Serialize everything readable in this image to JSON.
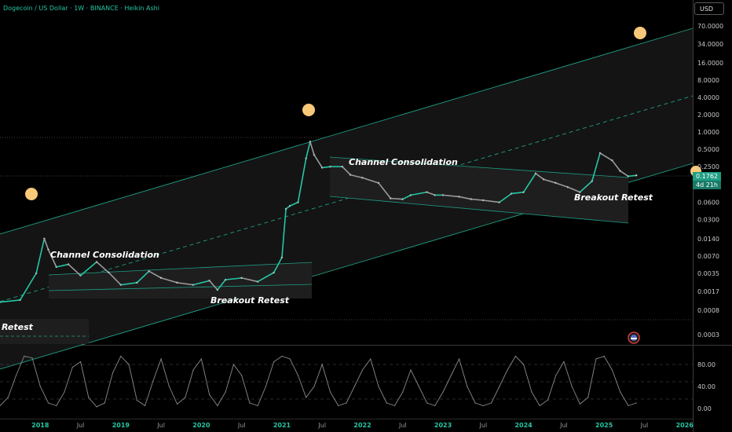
{
  "header": {
    "title": "Dogecoin / US Dollar · 1W · BINANCE · Heikin Ashi",
    "currency_button": "USD",
    "last_price": "0.1762",
    "countdown": "4d 21h"
  },
  "chart_data": [
    {
      "type": "line",
      "title": "Dogecoin / US Dollar · 1W · BINANCE · Heikin Ashi",
      "yscale": "log",
      "ylim": [
        0.0002,
        80
      ],
      "xlim": [
        2017.5,
        2026.1
      ],
      "grid": false,
      "yticks": [
        "70.0000",
        "34.0000",
        "16.0000",
        "8.0000",
        "4.0000",
        "2.0000",
        "1.0000",
        "0.5000",
        "0.2500",
        "0.1200",
        "0.0600",
        "0.0300",
        "0.0140",
        "0.0070",
        "0.0035",
        "0.0017",
        "0.0008",
        "0.0003"
      ],
      "xticks": [
        {
          "label": "2018",
          "x": 2018.0
        },
        {
          "label": "Jul",
          "x": 2018.5
        },
        {
          "label": "2019",
          "x": 2019.0
        },
        {
          "label": "Jul",
          "x": 2019.5
        },
        {
          "label": "2020",
          "x": 2020.0
        },
        {
          "label": "Jul",
          "x": 2020.5
        },
        {
          "label": "2021",
          "x": 2021.0
        },
        {
          "label": "Jul",
          "x": 2021.5
        },
        {
          "label": "2022",
          "x": 2022.0
        },
        {
          "label": "Jul",
          "x": 2022.5
        },
        {
          "label": "2023",
          "x": 2023.0
        },
        {
          "label": "Jul",
          "x": 2023.5
        },
        {
          "label": "2024",
          "x": 2024.0
        },
        {
          "label": "Jul",
          "x": 2024.5
        },
        {
          "label": "2025",
          "x": 2025.0
        },
        {
          "label": "Jul",
          "x": 2025.5
        },
        {
          "label": "2026",
          "x": 2026.0
        }
      ],
      "series": [
        {
          "x": [
            2017.5,
            2017.75,
            2017.95,
            2018.05,
            2018.1,
            2018.2,
            2018.35,
            2018.5,
            2018.7,
            2018.85,
            2019.0,
            2019.2,
            2019.35,
            2019.5,
            2019.7,
            2019.9,
            2020.1,
            2020.2,
            2020.3,
            2020.5,
            2020.7,
            2020.9,
            2021.0,
            2021.05,
            2021.1,
            2021.2,
            2021.3,
            2021.35,
            2021.4,
            2021.5,
            2021.6,
            2021.75,
            2021.85,
            2022.0,
            2022.2,
            2022.35,
            2022.5,
            2022.6,
            2022.8,
            2022.9,
            2023.0,
            2023.2,
            2023.35,
            2023.5,
            2023.7,
            2023.85,
            2024.0,
            2024.15,
            2024.25,
            2024.4,
            2024.55,
            2024.7,
            2024.85,
            2024.95,
            2025.1,
            2025.2,
            2025.3,
            2025.4
          ],
          "values": [
            0.0011,
            0.0012,
            0.0035,
            0.014,
            0.009,
            0.0045,
            0.005,
            0.0032,
            0.0055,
            0.0036,
            0.0022,
            0.0024,
            0.0038,
            0.0029,
            0.0024,
            0.0022,
            0.0026,
            0.0018,
            0.0027,
            0.0029,
            0.0025,
            0.0036,
            0.0066,
            0.046,
            0.052,
            0.06,
            0.35,
            0.68,
            0.4,
            0.24,
            0.25,
            0.25,
            0.18,
            0.16,
            0.13,
            0.07,
            0.068,
            0.08,
            0.09,
            0.08,
            0.08,
            0.075,
            0.068,
            0.065,
            0.06,
            0.085,
            0.09,
            0.19,
            0.15,
            0.13,
            0.11,
            0.09,
            0.14,
            0.43,
            0.32,
            0.21,
            0.17,
            0.1762
          ]
        }
      ],
      "annotations": [
        "Channel Consolidation",
        "Channel Consolidation",
        "Breakout Retest",
        "Breakout Retest",
        "Retest"
      ],
      "current_price": 0.1762
    },
    {
      "type": "line",
      "title": "",
      "ylim": [
        0,
        100
      ],
      "yticks": [
        "80.00",
        "40.00",
        "0.00"
      ],
      "series": [
        {
          "x": [
            2017.5,
            2017.6,
            2017.7,
            2017.8,
            2017.9,
            2018.0,
            2018.1,
            2018.2,
            2018.3,
            2018.4,
            2018.5,
            2018.6,
            2018.7,
            2018.8,
            2018.9,
            2019.0,
            2019.1,
            2019.2,
            2019.3,
            2019.4,
            2019.5,
            2019.6,
            2019.7,
            2019.8,
            2019.9,
            2020.0,
            2020.1,
            2020.2,
            2020.3,
            2020.4,
            2020.5,
            2020.6,
            2020.7,
            2020.8,
            2020.9,
            2021.0,
            2021.1,
            2021.2,
            2021.3,
            2021.4,
            2021.5,
            2021.6,
            2021.7,
            2021.8,
            2021.9,
            2022.0,
            2022.1,
            2022.2,
            2022.3,
            2022.4,
            2022.5,
            2022.6,
            2022.7,
            2022.8,
            2022.9,
            2023.0,
            2023.1,
            2023.2,
            2023.3,
            2023.4,
            2023.5,
            2023.6,
            2023.7,
            2023.8,
            2023.9,
            2024.0,
            2024.1,
            2024.2,
            2024.3,
            2024.4,
            2024.5,
            2024.6,
            2024.7,
            2024.8,
            2024.9,
            2025.0,
            2025.1,
            2025.2,
            2025.3,
            2025.4
          ],
          "values": [
            5,
            20,
            60,
            95,
            92,
            40,
            10,
            5,
            30,
            75,
            85,
            20,
            3,
            10,
            65,
            95,
            80,
            15,
            5,
            50,
            90,
            40,
            8,
            20,
            70,
            90,
            25,
            5,
            30,
            80,
            60,
            10,
            5,
            40,
            85,
            95,
            90,
            60,
            20,
            40,
            80,
            30,
            5,
            10,
            40,
            70,
            90,
            40,
            10,
            5,
            30,
            70,
            40,
            10,
            5,
            30,
            60,
            90,
            40,
            10,
            5,
            10,
            40,
            70,
            95,
            80,
            30,
            5,
            15,
            60,
            85,
            40,
            8,
            20,
            90,
            95,
            70,
            30,
            5,
            10
          ]
        }
      ]
    }
  ]
}
